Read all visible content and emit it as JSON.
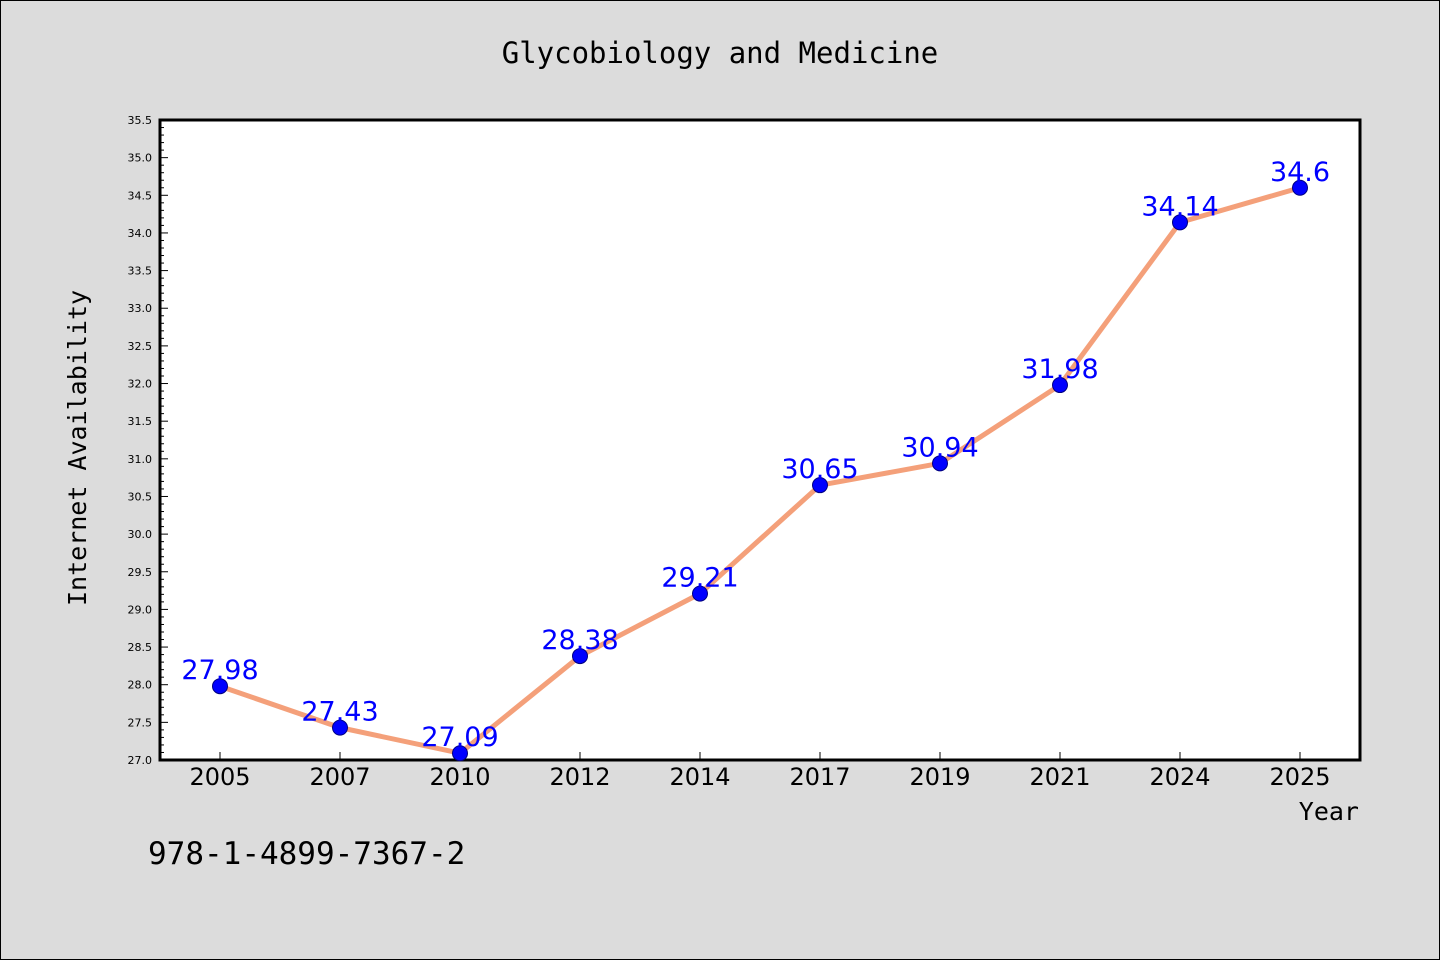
{
  "chart_data": {
    "type": "line",
    "title": "Glycobiology and Medicine",
    "xlabel": "Year",
    "ylabel": "Internet Availability",
    "categories": [
      "2005",
      "2007",
      "2010",
      "2012",
      "2014",
      "2017",
      "2019",
      "2021",
      "2024",
      "2025"
    ],
    "values": [
      27.98,
      27.43,
      27.09,
      28.38,
      29.21,
      30.65,
      30.94,
      31.98,
      34.14,
      34.6
    ],
    "data_labels": [
      "27.98",
      "27.43",
      "27.09",
      "28.38",
      "29.21",
      "30.65",
      "30.94",
      "31.98",
      "34.14",
      "34.6"
    ],
    "ylim": [
      27.0,
      35.5
    ],
    "y_ticks": [
      "27.0",
      "27.5",
      "28.0",
      "28.5",
      "29.0",
      "29.5",
      "30.0",
      "30.5",
      "31.0",
      "31.5",
      "32.0",
      "32.5",
      "33.0",
      "33.5",
      "34.0",
      "34.5",
      "35.0",
      "35.5"
    ],
    "grid": false,
    "legend": "none",
    "line_color": "#f4a07a",
    "marker_color": "#0000ff",
    "label_color": "#0000ff"
  },
  "footer": {
    "code": "978-1-4899-7367-2"
  }
}
